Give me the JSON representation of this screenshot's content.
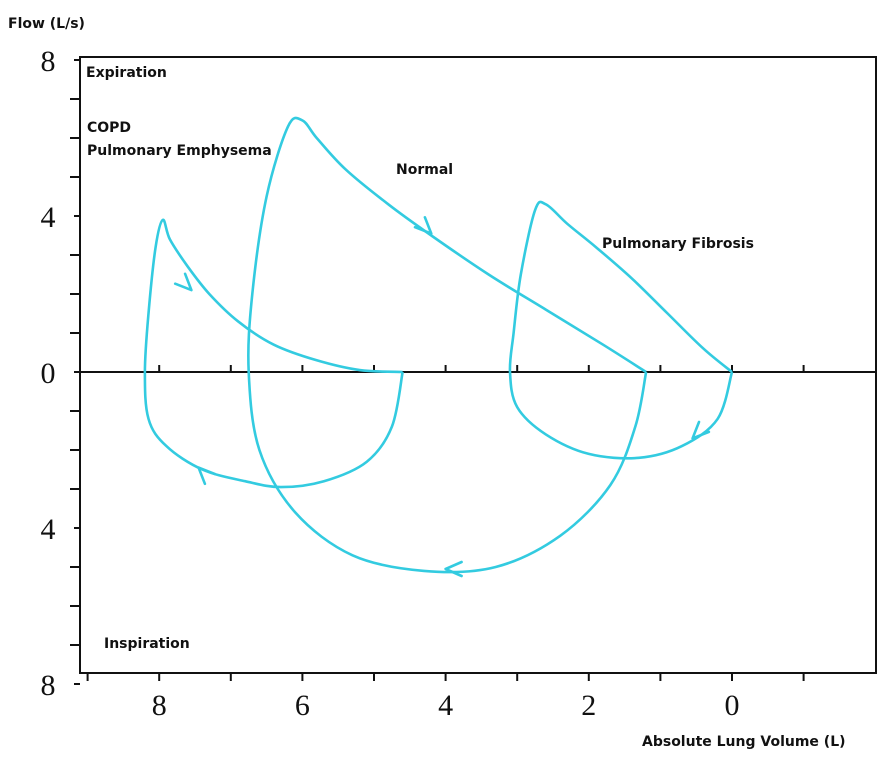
{
  "chart_data": {
    "type": "line",
    "title": "",
    "ylabel": "Flow (L/s)",
    "xlabel": "Absolute Lung Volume (L)",
    "xlim": [
      10,
      -2
    ],
    "ylim": [
      -8,
      8
    ],
    "x_reversed": true,
    "y_ticks": [
      8,
      4,
      0,
      4,
      8
    ],
    "x_ticks": [
      8,
      6,
      4,
      2,
      0
    ],
    "annotations": {
      "expiration": "Expiration",
      "inspiration": "Inspiration",
      "copd_line1": "COPD",
      "copd_line2": "Pulmonary Emphysema",
      "normal": "Normal",
      "fibrosis": "Pulmonary Fibrosis"
    },
    "series_color": "#33cbe0",
    "series": [
      {
        "label_ref": "copd",
        "points": [
          [
            4.6,
            0
          ],
          [
            5.2,
            0.05
          ],
          [
            5.8,
            0.3
          ],
          [
            6.4,
            0.7
          ],
          [
            6.9,
            1.3
          ],
          [
            7.3,
            2.0
          ],
          [
            7.6,
            2.7
          ],
          [
            7.85,
            3.4
          ],
          [
            7.95,
            3.9
          ],
          [
            8.05,
            3.2
          ],
          [
            8.15,
            1.5
          ],
          [
            8.2,
            0
          ],
          [
            8.15,
            -1.2
          ],
          [
            7.9,
            -1.9
          ],
          [
            7.4,
            -2.5
          ],
          [
            6.8,
            -2.8
          ],
          [
            6.3,
            -2.95
          ],
          [
            5.7,
            -2.8
          ],
          [
            5.1,
            -2.3
          ],
          [
            4.75,
            -1.4
          ],
          [
            4.6,
            0
          ]
        ]
      },
      {
        "label_ref": "normal",
        "points": [
          [
            1.2,
            0
          ],
          [
            1.8,
            0.7
          ],
          [
            2.6,
            1.6
          ],
          [
            3.4,
            2.5
          ],
          [
            4.2,
            3.5
          ],
          [
            4.8,
            4.3
          ],
          [
            5.4,
            5.2
          ],
          [
            5.8,
            6.0
          ],
          [
            6.0,
            6.45
          ],
          [
            6.2,
            6.3
          ],
          [
            6.5,
            4.5
          ],
          [
            6.7,
            2.0
          ],
          [
            6.75,
            0
          ],
          [
            6.6,
            -2.0
          ],
          [
            6.1,
            -3.6
          ],
          [
            5.3,
            -4.7
          ],
          [
            4.3,
            -5.1
          ],
          [
            3.3,
            -5.0
          ],
          [
            2.4,
            -4.2
          ],
          [
            1.7,
            -2.9
          ],
          [
            1.35,
            -1.4
          ],
          [
            1.2,
            0
          ]
        ]
      },
      {
        "label_ref": "fibrosis",
        "points": [
          [
            0,
            0
          ],
          [
            0.4,
            0.6
          ],
          [
            0.9,
            1.5
          ],
          [
            1.4,
            2.4
          ],
          [
            1.9,
            3.2
          ],
          [
            2.3,
            3.8
          ],
          [
            2.6,
            4.3
          ],
          [
            2.75,
            4.15
          ],
          [
            2.95,
            2.5
          ],
          [
            3.05,
            1.0
          ],
          [
            3.1,
            0
          ],
          [
            3.0,
            -0.9
          ],
          [
            2.6,
            -1.6
          ],
          [
            2.0,
            -2.1
          ],
          [
            1.3,
            -2.2
          ],
          [
            0.7,
            -1.9
          ],
          [
            0.2,
            -1.2
          ],
          [
            0,
            0
          ]
        ]
      }
    ],
    "arrows": [
      {
        "x": 7.55,
        "y": 2.1,
        "dir": "down-right"
      },
      {
        "x": 4.2,
        "y": 3.55,
        "dir": "down-right"
      },
      {
        "x": 0.55,
        "y": -1.7,
        "dir": "down-left"
      },
      {
        "x": 7.45,
        "y": -2.45,
        "dir": "up-left"
      },
      {
        "x": 4.0,
        "y": -5.05,
        "dir": "left"
      }
    ]
  }
}
